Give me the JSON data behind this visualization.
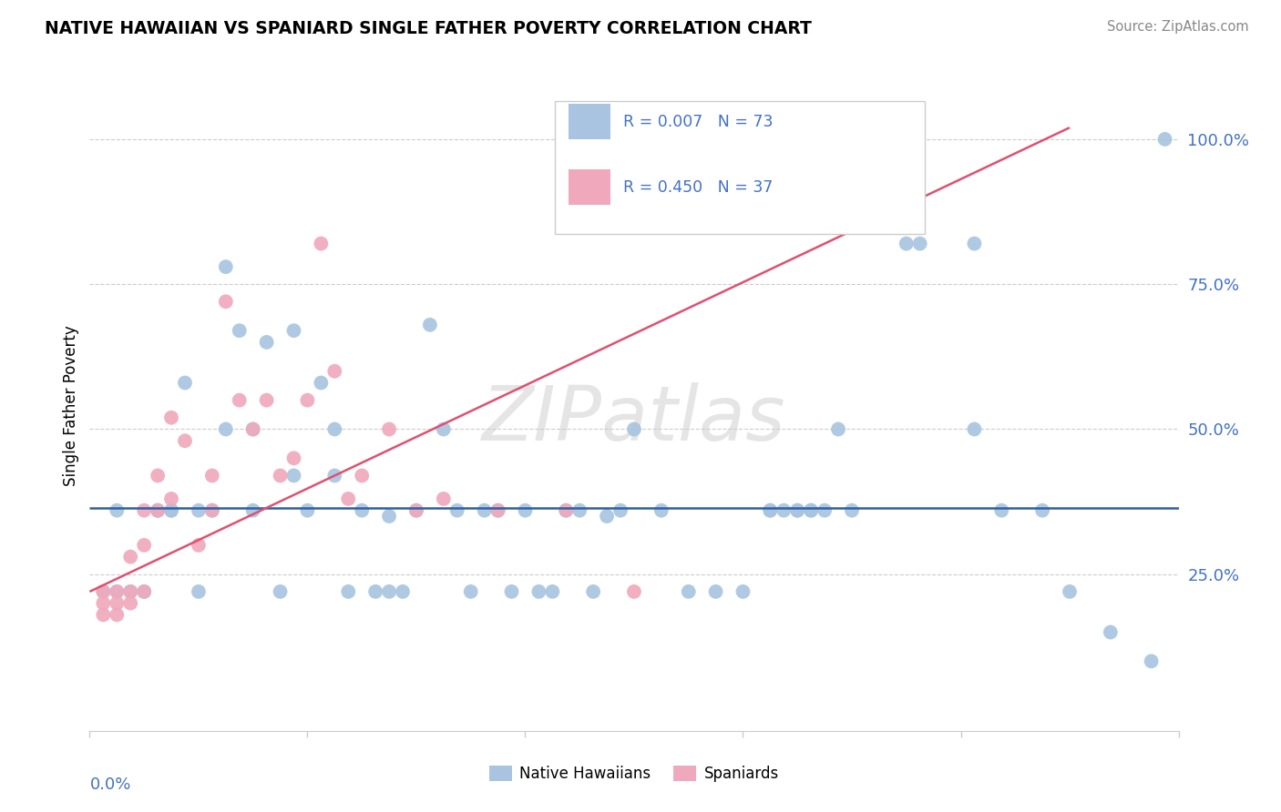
{
  "title": "NATIVE HAWAIIAN VS SPANIARD SINGLE FATHER POVERTY CORRELATION CHART",
  "source": "Source: ZipAtlas.com",
  "ylabel": "Single Father Poverty",
  "nh_color": "#a8c4e0",
  "sp_color": "#f0a8bc",
  "trendline_nh_color": "#3060a0",
  "trendline_sp_color": "#e05070",
  "watermark": "ZIPatlas",
  "xlim": [
    0.0,
    0.8
  ],
  "ylim": [
    -0.02,
    1.1
  ],
  "ytick_values": [
    0.25,
    0.5,
    0.75,
    1.0
  ],
  "native_hawaiians_x": [
    0.01,
    0.02,
    0.02,
    0.03,
    0.04,
    0.05,
    0.05,
    0.06,
    0.06,
    0.07,
    0.08,
    0.08,
    0.09,
    0.1,
    0.1,
    0.11,
    0.12,
    0.12,
    0.13,
    0.14,
    0.15,
    0.15,
    0.16,
    0.17,
    0.18,
    0.18,
    0.19,
    0.2,
    0.21,
    0.22,
    0.22,
    0.23,
    0.24,
    0.25,
    0.26,
    0.27,
    0.28,
    0.29,
    0.3,
    0.31,
    0.32,
    0.33,
    0.34,
    0.35,
    0.36,
    0.37,
    0.38,
    0.39,
    0.4,
    0.42,
    0.44,
    0.46,
    0.48,
    0.5,
    0.5,
    0.51,
    0.52,
    0.52,
    0.53,
    0.53,
    0.54,
    0.55,
    0.56,
    0.6,
    0.61,
    0.65,
    0.65,
    0.67,
    0.7,
    0.72,
    0.75,
    0.78,
    0.79
  ],
  "native_hawaiians_y": [
    0.22,
    0.36,
    0.22,
    0.22,
    0.22,
    0.36,
    0.36,
    0.36,
    0.36,
    0.58,
    0.22,
    0.36,
    0.36,
    0.5,
    0.78,
    0.67,
    0.36,
    0.5,
    0.65,
    0.22,
    0.42,
    0.67,
    0.36,
    0.58,
    0.42,
    0.5,
    0.22,
    0.36,
    0.22,
    0.35,
    0.22,
    0.22,
    0.36,
    0.68,
    0.5,
    0.36,
    0.22,
    0.36,
    0.36,
    0.22,
    0.36,
    0.22,
    0.22,
    0.36,
    0.36,
    0.22,
    0.35,
    0.36,
    0.5,
    0.36,
    0.22,
    0.22,
    0.22,
    0.36,
    0.36,
    0.36,
    0.36,
    0.36,
    0.36,
    0.36,
    0.36,
    0.5,
    0.36,
    0.82,
    0.82,
    0.82,
    0.5,
    0.36,
    0.36,
    0.22,
    0.15,
    0.1,
    1.0
  ],
  "spaniards_x": [
    0.01,
    0.01,
    0.01,
    0.02,
    0.02,
    0.02,
    0.03,
    0.03,
    0.03,
    0.04,
    0.04,
    0.04,
    0.05,
    0.05,
    0.06,
    0.06,
    0.07,
    0.08,
    0.09,
    0.09,
    0.1,
    0.11,
    0.12,
    0.13,
    0.14,
    0.15,
    0.16,
    0.17,
    0.18,
    0.19,
    0.2,
    0.22,
    0.24,
    0.26,
    0.3,
    0.35,
    0.4
  ],
  "spaniards_y": [
    0.2,
    0.22,
    0.18,
    0.22,
    0.2,
    0.18,
    0.28,
    0.22,
    0.2,
    0.36,
    0.3,
    0.22,
    0.42,
    0.36,
    0.52,
    0.38,
    0.48,
    0.3,
    0.42,
    0.36,
    0.72,
    0.55,
    0.5,
    0.55,
    0.42,
    0.45,
    0.55,
    0.82,
    0.6,
    0.38,
    0.42,
    0.5,
    0.36,
    0.38,
    0.36,
    0.36,
    0.22
  ],
  "sp_trendline_x0": 0.0,
  "sp_trendline_y0": 0.22,
  "sp_trendline_x1": 0.72,
  "sp_trendline_y1": 1.02,
  "nh_trendline_y": 0.365
}
